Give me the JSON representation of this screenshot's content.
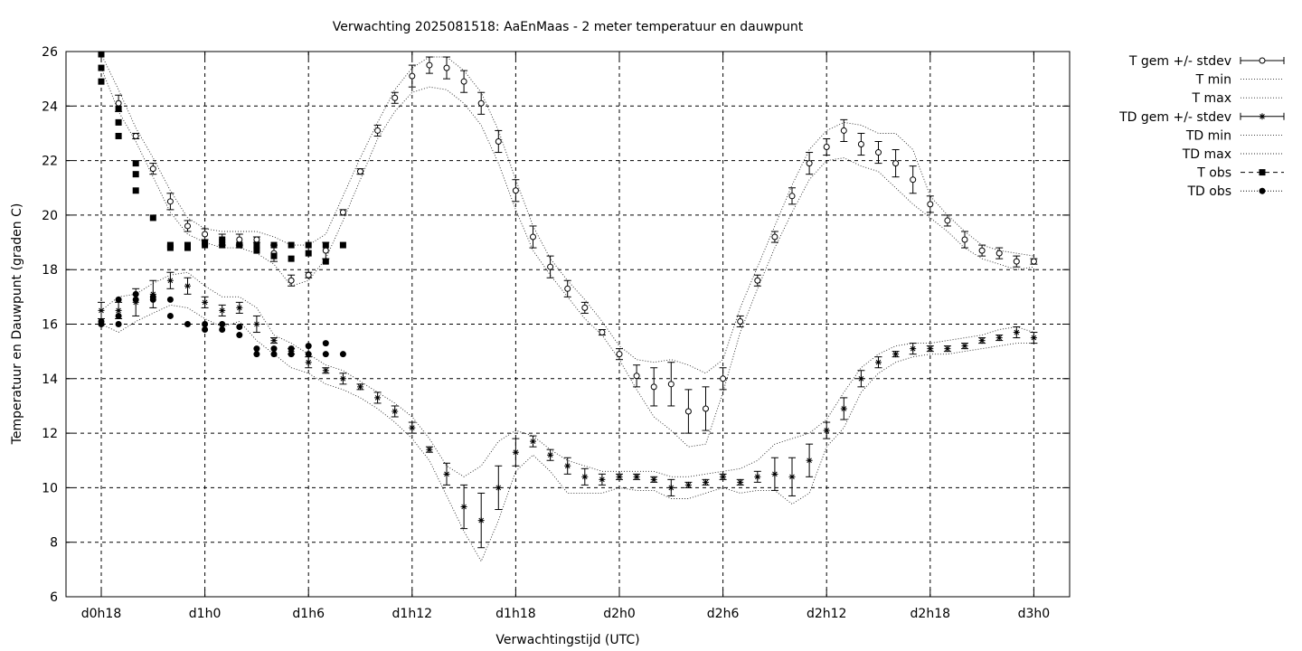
{
  "chart_data": {
    "type": "line",
    "title": "Verwachting 2025081518: AaEnMaas - 2 meter temperatuur en dauwpunt",
    "xlabel": "Verwachtingstijd (UTC)",
    "ylabel": "Temperatuur en Dauwpunt (graden C)",
    "ylim": [
      6,
      26
    ],
    "yticks": [
      6,
      8,
      10,
      12,
      14,
      16,
      18,
      20,
      22,
      24,
      26
    ],
    "xticks": [
      {
        "x": 0,
        "label": "d0h18"
      },
      {
        "x": 6,
        "label": "d1h0"
      },
      {
        "x": 12,
        "label": "d1h6"
      },
      {
        "x": 18,
        "label": "d1h12"
      },
      {
        "x": 24,
        "label": "d1h18"
      },
      {
        "x": 30,
        "label": "d2h0"
      },
      {
        "x": 36,
        "label": "d2h6"
      },
      {
        "x": 42,
        "label": "d2h12"
      },
      {
        "x": 48,
        "label": "d2h18"
      },
      {
        "x": 54,
        "label": "d3h0"
      }
    ],
    "grid": true,
    "legend_position": "top-right, outside plot",
    "series": [
      {
        "name": "T gem +/- stdev",
        "x": [
          1,
          2,
          3,
          4,
          5,
          6,
          7,
          8,
          9,
          10,
          11,
          12,
          13,
          14,
          15,
          16,
          17,
          18,
          19,
          20,
          21,
          22,
          23,
          24,
          25,
          26,
          27,
          28,
          29,
          30,
          31,
          32,
          33,
          34,
          35,
          36,
          37,
          38,
          39,
          40,
          41,
          42,
          43,
          44,
          45,
          46,
          47,
          48,
          49,
          50,
          51,
          52,
          53,
          54
        ],
        "y": [
          24.1,
          22.9,
          21.7,
          20.5,
          19.6,
          19.3,
          19.1,
          19.1,
          19.1,
          18.6,
          17.6,
          17.8,
          18.7,
          20.1,
          21.6,
          23.1,
          24.3,
          25.1,
          25.5,
          25.4,
          24.9,
          24.1,
          22.7,
          20.9,
          19.2,
          18.1,
          17.3,
          16.6,
          15.7,
          14.9,
          14.1,
          13.7,
          13.8,
          12.8,
          12.9,
          14.0,
          16.1,
          17.6,
          19.2,
          20.7,
          21.9,
          22.5,
          23.1,
          22.6,
          22.3,
          21.9,
          21.3,
          20.4,
          19.8,
          19.1,
          18.7,
          18.6,
          18.3,
          18.3
        ],
        "stdev": [
          0.3,
          0.1,
          0.2,
          0.3,
          0.2,
          0.2,
          0.2,
          0.2,
          0.1,
          0.3,
          0.2,
          0.1,
          0.3,
          0.1,
          0.1,
          0.2,
          0.2,
          0.4,
          0.3,
          0.4,
          0.4,
          0.4,
          0.4,
          0.4,
          0.4,
          0.4,
          0.3,
          0.2,
          0.1,
          0.2,
          0.4,
          0.7,
          0.8,
          0.8,
          0.8,
          0.4,
          0.2,
          0.2,
          0.2,
          0.3,
          0.4,
          0.3,
          0.4,
          0.4,
          0.4,
          0.5,
          0.5,
          0.3,
          0.2,
          0.3,
          0.2,
          0.2,
          0.2,
          0.1
        ]
      },
      {
        "name": "T min",
        "x": [
          0,
          1,
          2,
          3,
          4,
          5,
          6,
          7,
          8,
          9,
          10,
          11,
          12,
          13,
          14,
          15,
          16,
          17,
          18,
          19,
          20,
          21,
          22,
          23,
          24,
          25,
          26,
          27,
          28,
          29,
          30,
          31,
          32,
          33,
          34,
          35,
          36,
          37,
          38,
          39,
          40,
          41,
          42,
          43,
          44,
          45,
          46,
          47,
          48,
          49,
          50,
          51,
          52,
          53,
          54
        ],
        "y": [
          25.4,
          23.8,
          22.7,
          21.4,
          20.1,
          19.3,
          19.0,
          18.8,
          18.8,
          18.6,
          18.2,
          17.4,
          17.6,
          18.4,
          19.8,
          21.3,
          22.8,
          23.8,
          24.5,
          24.7,
          24.6,
          24.1,
          23.3,
          21.9,
          20.2,
          18.7,
          17.8,
          17.0,
          16.2,
          15.6,
          14.7,
          13.6,
          12.6,
          12.1,
          11.5,
          11.6,
          13.5,
          15.7,
          17.3,
          18.8,
          20.1,
          21.3,
          22.0,
          22.1,
          21.8,
          21.6,
          21.0,
          20.4,
          19.9,
          19.4,
          18.8,
          18.4,
          18.2,
          18.0,
          18.1
        ]
      },
      {
        "name": "T max",
        "x": [
          0,
          1,
          2,
          3,
          4,
          5,
          6,
          7,
          8,
          9,
          10,
          11,
          12,
          13,
          14,
          15,
          16,
          17,
          18,
          19,
          20,
          21,
          22,
          23,
          24,
          25,
          26,
          27,
          28,
          29,
          30,
          31,
          32,
          33,
          34,
          35,
          36,
          37,
          38,
          39,
          40,
          41,
          42,
          43,
          44,
          45,
          46,
          47,
          48,
          49,
          50,
          51,
          52,
          53,
          54
        ],
        "y": [
          25.9,
          24.6,
          23.2,
          22.1,
          20.9,
          19.9,
          19.5,
          19.4,
          19.4,
          19.4,
          19.2,
          18.9,
          18.9,
          19.3,
          20.7,
          22.1,
          23.4,
          24.6,
          25.4,
          25.8,
          25.8,
          25.3,
          24.5,
          23.1,
          21.3,
          19.6,
          18.4,
          17.6,
          16.9,
          16.1,
          15.2,
          14.7,
          14.6,
          14.7,
          14.5,
          14.2,
          14.7,
          16.6,
          18.1,
          19.6,
          21.1,
          22.4,
          23.1,
          23.4,
          23.3,
          23.0,
          23.0,
          22.4,
          20.7,
          20.0,
          19.4,
          18.9,
          18.7,
          18.6,
          18.5
        ]
      },
      {
        "name": "TD gem +/- stdev",
        "x": [
          0,
          1,
          2,
          3,
          4,
          5,
          6,
          7,
          8,
          9,
          10,
          11,
          12,
          13,
          14,
          15,
          16,
          17,
          18,
          19,
          20,
          21,
          22,
          23,
          24,
          25,
          26,
          27,
          28,
          29,
          30,
          31,
          32,
          33,
          34,
          35,
          36,
          37,
          38,
          39,
          40,
          41,
          42,
          43,
          44,
          45,
          46,
          47,
          48,
          49,
          50,
          51,
          52,
          53,
          54
        ],
        "y": [
          16.5,
          16.5,
          16.8,
          17.1,
          17.6,
          17.4,
          16.8,
          16.5,
          16.6,
          16.0,
          15.4,
          15.0,
          14.6,
          14.3,
          14.0,
          13.7,
          13.3,
          12.8,
          12.2,
          11.4,
          10.5,
          9.3,
          8.8,
          10.0,
          11.3,
          11.7,
          11.2,
          10.8,
          10.4,
          10.3,
          10.4,
          10.4,
          10.3,
          10.0,
          10.1,
          10.2,
          10.4,
          10.2,
          10.4,
          10.5,
          10.4,
          11.0,
          12.1,
          12.9,
          14.0,
          14.6,
          14.9,
          15.1,
          15.1,
          15.1,
          15.2,
          15.4,
          15.5,
          15.7,
          15.5
        ],
        "stdev": [
          0.3,
          0.3,
          0.5,
          0.5,
          0.3,
          0.3,
          0.2,
          0.2,
          0.2,
          0.3,
          0.1,
          0.1,
          0.2,
          0.1,
          0.2,
          0.1,
          0.2,
          0.2,
          0.2,
          0.1,
          0.4,
          0.8,
          1.0,
          0.8,
          0.5,
          0.2,
          0.2,
          0.3,
          0.3,
          0.2,
          0.1,
          0.1,
          0.1,
          0.3,
          0.1,
          0.1,
          0.1,
          0.1,
          0.2,
          0.6,
          0.7,
          0.6,
          0.3,
          0.4,
          0.3,
          0.2,
          0.1,
          0.2,
          0.1,
          0.1,
          0.1,
          0.1,
          0.1,
          0.2,
          0.2
        ]
      },
      {
        "name": "TD min",
        "x": [
          0,
          1,
          2,
          3,
          4,
          5,
          6,
          7,
          8,
          9,
          10,
          11,
          12,
          13,
          14,
          15,
          16,
          17,
          18,
          19,
          20,
          21,
          22,
          23,
          24,
          25,
          26,
          27,
          28,
          29,
          30,
          31,
          32,
          33,
          34,
          35,
          36,
          37,
          38,
          39,
          40,
          41,
          42,
          43,
          44,
          45,
          46,
          47,
          48,
          49,
          50,
          51,
          52,
          53,
          54
        ],
        "y": [
          16.0,
          15.7,
          16.1,
          16.4,
          16.7,
          16.6,
          16.2,
          15.9,
          16.1,
          15.4,
          14.9,
          14.4,
          14.2,
          13.8,
          13.6,
          13.3,
          12.9,
          12.4,
          11.8,
          11.0,
          9.7,
          8.4,
          7.3,
          8.8,
          10.6,
          11.2,
          10.6,
          9.8,
          9.8,
          9.8,
          10.0,
          9.9,
          9.9,
          9.6,
          9.6,
          9.8,
          10.0,
          9.8,
          9.9,
          9.9,
          9.4,
          9.8,
          11.5,
          12.2,
          13.5,
          14.2,
          14.6,
          14.8,
          14.9,
          14.9,
          15.0,
          15.1,
          15.2,
          15.3,
          15.3
        ]
      },
      {
        "name": "TD max",
        "x": [
          0,
          1,
          2,
          3,
          4,
          5,
          6,
          7,
          8,
          9,
          10,
          11,
          12,
          13,
          14,
          15,
          16,
          17,
          18,
          19,
          20,
          21,
          22,
          23,
          24,
          25,
          26,
          27,
          28,
          29,
          30,
          31,
          32,
          33,
          34,
          35,
          36,
          37,
          38,
          39,
          40,
          41,
          42,
          43,
          44,
          45,
          46,
          47,
          48,
          49,
          50,
          51,
          52,
          53,
          54
        ],
        "y": [
          16.5,
          17.0,
          17.1,
          17.5,
          17.8,
          17.9,
          17.4,
          17.0,
          17.0,
          16.6,
          15.6,
          15.3,
          14.9,
          14.5,
          14.3,
          13.9,
          13.5,
          13.1,
          12.6,
          11.8,
          10.8,
          10.4,
          10.8,
          11.7,
          12.1,
          11.9,
          11.4,
          11.0,
          10.8,
          10.6,
          10.6,
          10.6,
          10.6,
          10.4,
          10.4,
          10.5,
          10.6,
          10.7,
          11.0,
          11.6,
          11.8,
          12.0,
          12.5,
          13.5,
          14.4,
          14.9,
          15.2,
          15.3,
          15.3,
          15.4,
          15.5,
          15.6,
          15.8,
          15.9,
          15.7
        ]
      },
      {
        "name": "T obs",
        "x": [
          0,
          0,
          0,
          1,
          1,
          1,
          2,
          2,
          2,
          3,
          4,
          4,
          5,
          5,
          6,
          6,
          7,
          7,
          8,
          8,
          9,
          9,
          10,
          10,
          11,
          11,
          12,
          12,
          13,
          13,
          14
        ],
        "y": [
          25.9,
          25.4,
          24.9,
          23.9,
          23.4,
          22.9,
          21.9,
          21.5,
          20.9,
          19.9,
          18.9,
          18.8,
          18.9,
          18.8,
          19.0,
          18.9,
          19.1,
          18.9,
          18.9,
          18.9,
          18.9,
          18.7,
          18.9,
          18.5,
          18.9,
          18.4,
          18.9,
          18.6,
          18.9,
          18.3,
          18.9
        ]
      },
      {
        "name": "TD obs",
        "x": [
          0,
          0,
          1,
          1,
          1,
          2,
          2,
          3,
          3,
          4,
          4,
          5,
          6,
          6,
          7,
          7,
          8,
          8,
          9,
          9,
          10,
          10,
          11,
          11,
          12,
          12,
          13,
          13,
          14
        ],
        "y": [
          16.1,
          16.0,
          16.9,
          16.3,
          16.0,
          17.1,
          16.9,
          17.0,
          16.9,
          16.9,
          16.3,
          16.0,
          16.0,
          15.8,
          16.0,
          15.8,
          15.9,
          15.6,
          15.1,
          14.9,
          15.1,
          14.9,
          15.1,
          14.9,
          15.2,
          14.9,
          15.3,
          14.9,
          14.9
        ]
      }
    ]
  }
}
